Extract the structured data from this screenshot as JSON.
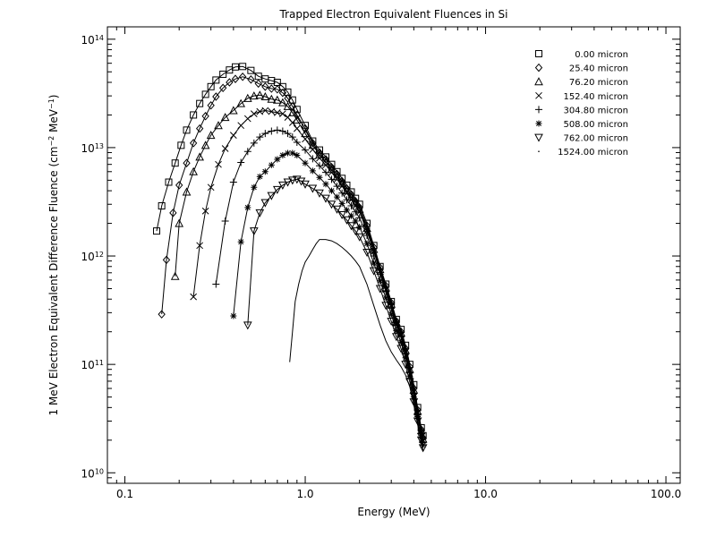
{
  "chart_data": {
    "type": "line",
    "title": "Trapped Electron Equivalent Fluences in Si",
    "xlabel": "Energy (MeV)",
    "ylabel_main": "1 MeV Electron Equivalent Difference Fluence (cm",
    "ylabel_sup1": "−2",
    "ylabel_mid": " MeV",
    "ylabel_sup2": "−1",
    "ylabel_end": ")",
    "x_scale": "log",
    "y_scale": "log",
    "xlim": [
      0.08,
      120
    ],
    "ylim": [
      8000000000.0,
      130000000000000.0
    ],
    "x_ticks": [
      {
        "value": 0.1,
        "label": "0.1"
      },
      {
        "value": 1,
        "label": "1.0"
      },
      {
        "value": 10,
        "label": "10.0"
      },
      {
        "value": 100,
        "label": "100.0"
      }
    ],
    "y_ticks": [
      {
        "value": 10000000000.0,
        "base": "10",
        "exp": "10"
      },
      {
        "value": 100000000000.0,
        "base": "10",
        "exp": "11"
      },
      {
        "value": 1000000000000.0,
        "base": "10",
        "exp": "12"
      },
      {
        "value": 10000000000000.0,
        "base": "10",
        "exp": "13"
      },
      {
        "value": 100000000000000.0,
        "base": "10",
        "exp": "14"
      }
    ],
    "grid": false,
    "legend_position": "top-right",
    "series": [
      {
        "name": "0.00 micron",
        "marker": "square",
        "x": [
          0.15,
          0.16,
          0.175,
          0.19,
          0.205,
          0.22,
          0.24,
          0.26,
          0.28,
          0.3,
          0.32,
          0.35,
          0.38,
          0.41,
          0.45,
          0.5,
          0.55,
          0.6,
          0.65,
          0.7,
          0.75,
          0.8,
          0.85,
          0.9,
          1.0,
          1.1,
          1.2,
          1.3,
          1.4,
          1.5,
          1.6,
          1.7,
          1.8,
          1.9,
          2.0,
          2.2,
          2.4,
          2.6,
          2.8,
          3.0,
          3.2,
          3.4,
          3.6,
          3.8,
          4.0,
          4.2,
          4.4,
          4.5
        ],
        "y": [
          1700000000000.0,
          2900000000000.0,
          4800000000000.0,
          7200000000000.0,
          10500000000000.0,
          14500000000000.0,
          20000000000000.0,
          25500000000000.0,
          31000000000000.0,
          36500000000000.0,
          42000000000000.0,
          47500000000000.0,
          52000000000000.0,
          55500000000000.0,
          56000000000000.0,
          51500000000000.0,
          45500000000000.0,
          43000000000000.0,
          41500000000000.0,
          40000000000000.0,
          36500000000000.0,
          32500000000000.0,
          27500000000000.0,
          22500000000000.0,
          16000000000000.0,
          11500000000000.0,
          9500000000000.0,
          8200000000000.0,
          7000000000000.0,
          6000000000000.0,
          5200000000000.0,
          4500000000000.0,
          3900000000000.0,
          3400000000000.0,
          3000000000000.0,
          2000000000000.0,
          1250000000000.0,
          800000000000.0,
          550000000000.0,
          380000000000.0,
          260000000000.0,
          210000000000.0,
          150000000000.0,
          100000000000.0,
          65000000000.0,
          40000000000.0,
          26000000000.0,
          22000000000.0
        ]
      },
      {
        "name": "25.40 micron",
        "marker": "diamond",
        "x": [
          0.16,
          0.17,
          0.185,
          0.2,
          0.22,
          0.24,
          0.26,
          0.28,
          0.3,
          0.32,
          0.35,
          0.38,
          0.41,
          0.45,
          0.5,
          0.55,
          0.6,
          0.65,
          0.7,
          0.75,
          0.8,
          0.85,
          0.9,
          1.0,
          1.1,
          1.2,
          1.3,
          1.4,
          1.5,
          1.6,
          1.7,
          1.8,
          1.9,
          2.0,
          2.2,
          2.4,
          2.6,
          2.8,
          3.0,
          3.2,
          3.4,
          3.6,
          3.8,
          4.0,
          4.2,
          4.4,
          4.5
        ],
        "y": [
          290000000000.0,
          920000000000.0,
          2500000000000.0,
          4500000000000.0,
          7200000000000.0,
          11000000000000.0,
          15000000000000.0,
          19500000000000.0,
          24500000000000.0,
          29500000000000.0,
          35500000000000.0,
          40000000000000.0,
          43000000000000.0,
          45000000000000.0,
          42500000000000.0,
          39000000000000.0,
          36500000000000.0,
          35000000000000.0,
          34500000000000.0,
          32000000000000.0,
          28500000000000.0,
          24000000000000.0,
          20000000000000.0,
          15000000000000.0,
          11000000000000.0,
          9000000000000.0,
          7800000000000.0,
          6600000000000.0,
          5700000000000.0,
          4900000000000.0,
          4200000000000.0,
          3700000000000.0,
          3200000000000.0,
          2800000000000.0,
          1900000000000.0,
          1200000000000.0,
          780000000000.0,
          530000000000.0,
          370000000000.0,
          250000000000.0,
          200000000000.0,
          140000000000.0,
          95000000000.0,
          60000000000.0,
          38000000000.0,
          25000000000.0,
          21000000000.0
        ]
      },
      {
        "name": "76.20 micron",
        "marker": "triangle",
        "x": [
          0.19,
          0.2,
          0.22,
          0.24,
          0.26,
          0.28,
          0.3,
          0.33,
          0.36,
          0.4,
          0.44,
          0.48,
          0.52,
          0.56,
          0.6,
          0.65,
          0.7,
          0.75,
          0.8,
          0.85,
          0.9,
          1.0,
          1.1,
          1.2,
          1.3,
          1.4,
          1.5,
          1.6,
          1.7,
          1.8,
          1.9,
          2.0,
          2.2,
          2.4,
          2.6,
          2.8,
          3.0,
          3.2,
          3.4,
          3.6,
          3.8,
          4.0,
          4.2,
          4.4,
          4.5
        ],
        "y": [
          650000000000.0,
          2000000000000.0,
          3900000000000.0,
          6000000000000.0,
          8200000000000.0,
          10500000000000.0,
          13000000000000.0,
          16000000000000.0,
          19000000000000.0,
          22000000000000.0,
          25500000000000.0,
          28500000000000.0,
          30000000000000.0,
          30500000000000.0,
          29500000000000.0,
          28000000000000.0,
          27500000000000.0,
          26000000000000.0,
          24000000000000.0,
          21000000000000.0,
          18000000000000.0,
          13500000000000.0,
          10500000000000.0,
          8600000000000.0,
          7400000000000.0,
          6300000000000.0,
          5400000000000.0,
          4700000000000.0,
          4000000000000.0,
          3500000000000.0,
          3100000000000.0,
          2700000000000.0,
          1800000000000.0,
          1150000000000.0,
          750000000000.0,
          510000000000.0,
          360000000000.0,
          245000000000.0,
          195000000000.0,
          135000000000.0,
          90000000000.0,
          58000000000.0,
          37000000000.0,
          24500000000.0,
          20500000000.0
        ]
      },
      {
        "name": "152.40 micron",
        "marker": "x",
        "x": [
          0.24,
          0.26,
          0.28,
          0.3,
          0.33,
          0.36,
          0.4,
          0.44,
          0.48,
          0.52,
          0.56,
          0.6,
          0.65,
          0.7,
          0.75,
          0.8,
          0.85,
          0.9,
          1.0,
          1.1,
          1.2,
          1.3,
          1.4,
          1.5,
          1.6,
          1.7,
          1.8,
          1.9,
          2.0,
          2.2,
          2.4,
          2.6,
          2.8,
          3.0,
          3.2,
          3.4,
          3.6,
          3.8,
          4.0,
          4.2,
          4.4,
          4.5
        ],
        "y": [
          420000000000.0,
          1250000000000.0,
          2600000000000.0,
          4300000000000.0,
          7000000000000.0,
          9800000000000.0,
          13000000000000.0,
          16000000000000.0,
          18500000000000.0,
          20500000000000.0,
          21500000000000.0,
          22000000000000.0,
          21500000000000.0,
          21000000000000.0,
          20500000000000.0,
          19000000000000.0,
          17000000000000.0,
          15000000000000.0,
          12000000000000.0,
          9600000000000.0,
          8000000000000.0,
          6900000000000.0,
          5900000000000.0,
          5100000000000.0,
          4400000000000.0,
          3800000000000.0,
          3300000000000.0,
          2900000000000.0,
          2550000000000.0,
          1700000000000.0,
          1100000000000.0,
          720000000000.0,
          490000000000.0,
          350000000000.0,
          240000000000.0,
          190000000000.0,
          130000000000.0,
          88000000000.0,
          56000000000.0,
          36000000000.0,
          24000000000.0,
          20000000000.0
        ]
      },
      {
        "name": "304.80 micron",
        "marker": "plus",
        "x": [
          0.32,
          0.36,
          0.4,
          0.44,
          0.48,
          0.52,
          0.56,
          0.6,
          0.65,
          0.7,
          0.75,
          0.8,
          0.85,
          0.9,
          1.0,
          1.1,
          1.2,
          1.3,
          1.4,
          1.5,
          1.6,
          1.7,
          1.8,
          1.9,
          2.0,
          2.2,
          2.4,
          2.6,
          2.8,
          3.0,
          3.2,
          3.4,
          3.6,
          3.8,
          4.0,
          4.2,
          4.4,
          4.5
        ],
        "y": [
          550000000000.0,
          2100000000000.0,
          4800000000000.0,
          7300000000000.0,
          9200000000000.0,
          11000000000000.0,
          12500000000000.0,
          13500000000000.0,
          14200000000000.0,
          14500000000000.0,
          14200000000000.0,
          13500000000000.0,
          12500000000000.0,
          11200000000000.0,
          9500000000000.0,
          7900000000000.0,
          6800000000000.0,
          5900000000000.0,
          5100000000000.0,
          4400000000000.0,
          3800000000000.0,
          3300000000000.0,
          2900000000000.0,
          2550000000000.0,
          2250000000000.0,
          1550000000000.0,
          1000000000000.0,
          680000000000.0,
          470000000000.0,
          330000000000.0,
          230000000000.0,
          180000000000.0,
          125000000000.0,
          85000000000.0,
          54000000000.0,
          35000000000.0,
          23000000000.0,
          19000000000.0
        ]
      },
      {
        "name": "508.00 micron",
        "marker": "asterisk",
        "x": [
          0.4,
          0.44,
          0.48,
          0.52,
          0.56,
          0.6,
          0.65,
          0.7,
          0.75,
          0.8,
          0.85,
          0.9,
          1.0,
          1.1,
          1.2,
          1.3,
          1.4,
          1.5,
          1.6,
          1.7,
          1.8,
          1.9,
          2.0,
          2.2,
          2.4,
          2.6,
          2.8,
          3.0,
          3.2,
          3.4,
          3.6,
          3.8,
          4.0,
          4.2,
          4.4,
          4.5
        ],
        "y": [
          280000000000.0,
          1350000000000.0,
          2800000000000.0,
          4300000000000.0,
          5400000000000.0,
          6000000000000.0,
          6900000000000.0,
          7800000000000.0,
          8500000000000.0,
          8900000000000.0,
          8900000000000.0,
          8500000000000.0,
          7200000000000.0,
          6100000000000.0,
          5300000000000.0,
          4600000000000.0,
          4000000000000.0,
          3500000000000.0,
          3050000000000.0,
          2650000000000.0,
          2350000000000.0,
          2100000000000.0,
          1850000000000.0,
          1300000000000.0,
          860000000000.0,
          590000000000.0,
          410000000000.0,
          290000000000.0,
          205000000000.0,
          160000000000.0,
          115000000000.0,
          78000000000.0,
          50000000000.0,
          33000000000.0,
          22000000000.0,
          18000000000.0
        ]
      },
      {
        "name": "762.00 micron",
        "marker": "down-triangle",
        "x": [
          0.48,
          0.52,
          0.56,
          0.6,
          0.65,
          0.7,
          0.75,
          0.8,
          0.85,
          0.9,
          0.95,
          1.0,
          1.1,
          1.2,
          1.3,
          1.4,
          1.5,
          1.6,
          1.7,
          1.8,
          1.9,
          2.0,
          2.2,
          2.4,
          2.6,
          2.8,
          3.0,
          3.2,
          3.4,
          3.6,
          3.8,
          4.0,
          4.2,
          4.4,
          4.5
        ],
        "y": [
          230000000000.0,
          1700000000000.0,
          2500000000000.0,
          3100000000000.0,
          3600000000000.0,
          4100000000000.0,
          4500000000000.0,
          4800000000000.0,
          5000000000000.0,
          5100000000000.0,
          4900000000000.0,
          4600000000000.0,
          4200000000000.0,
          3800000000000.0,
          3400000000000.0,
          3000000000000.0,
          2700000000000.0,
          2400000000000.0,
          2150000000000.0,
          1900000000000.0,
          1700000000000.0,
          1500000000000.0,
          1080000000000.0,
          730000000000.0,
          500000000000.0,
          350000000000.0,
          250000000000.0,
          180000000000.0,
          140000000000.0,
          100000000000.0,
          69000000000.0,
          45000000000.0,
          30000000000.0,
          20000000000.0,
          17000000000.0
        ]
      },
      {
        "name": "1524.00 micron",
        "marker": "dot",
        "x": [
          0.82,
          0.85,
          0.88,
          0.92,
          0.96,
          1.0,
          1.05,
          1.1,
          1.15,
          1.2,
          1.3,
          1.4,
          1.5,
          1.6,
          1.7,
          1.8,
          1.9,
          2.0,
          2.2,
          2.4,
          2.6,
          2.8,
          3.0,
          3.2,
          3.4,
          3.6,
          3.8,
          4.0,
          4.2,
          4.4,
          4.5
        ],
        "y": [
          105000000000.0,
          200000000000.0,
          380000000000.0,
          550000000000.0,
          730000000000.0,
          880000000000.0,
          1000000000000.0,
          1150000000000.0,
          1300000000000.0,
          1420000000000.0,
          1420000000000.0,
          1380000000000.0,
          1300000000000.0,
          1200000000000.0,
          1100000000000.0,
          1000000000000.0,
          900000000000.0,
          800000000000.0,
          550000000000.0,
          350000000000.0,
          230000000000.0,
          165000000000.0,
          130000000000.0,
          110000000000.0,
          95000000000.0,
          80000000000.0,
          62000000000.0,
          42000000000.0,
          28000000000.0,
          19000000000.0,
          16000000000.0
        ]
      }
    ]
  }
}
